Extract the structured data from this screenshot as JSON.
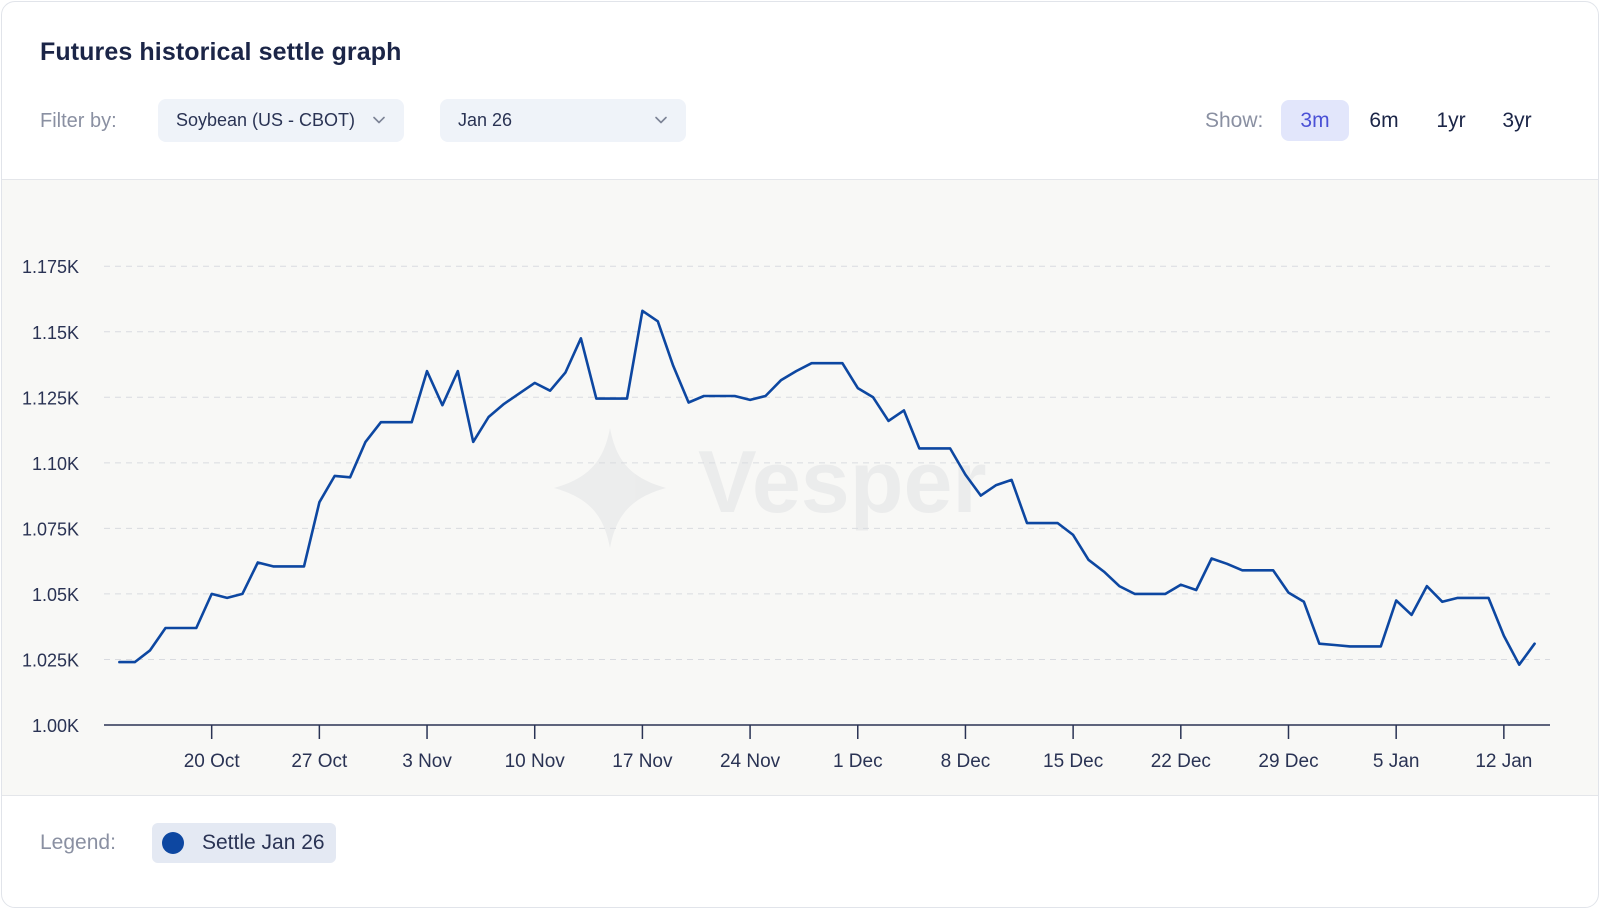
{
  "header": {
    "title": "Futures historical settle graph"
  },
  "filters": {
    "label": "Filter by:",
    "commodity": "Soybean (US - CBOT)",
    "contract": "Jan 26"
  },
  "range": {
    "label": "Show:",
    "options": [
      "3m",
      "6m",
      "1yr",
      "3yr"
    ],
    "selected": "3m"
  },
  "legend": {
    "label": "Legend:",
    "items": [
      {
        "name": "Settle Jan 26",
        "color": "#0d47a1"
      }
    ]
  },
  "watermark": {
    "text": "Vesper"
  },
  "chart_data": {
    "type": "line",
    "x_axis": {
      "type": "date",
      "range": [
        "2025-10-13",
        "2026-01-15"
      ],
      "tick_dates": [
        "2025-10-20",
        "2025-10-27",
        "2025-11-03",
        "2025-11-10",
        "2025-11-17",
        "2025-11-24",
        "2025-12-01",
        "2025-12-08",
        "2025-12-15",
        "2025-12-22",
        "2025-12-29",
        "2026-01-05",
        "2026-01-12"
      ],
      "tick_labels": [
        "20 Oct",
        "27 Oct",
        "3 Nov",
        "10 Nov",
        "17 Nov",
        "24 Nov",
        "1 Dec",
        "8 Dec",
        "15 Dec",
        "22 Dec",
        "29 Dec",
        "5 Jan",
        "12 Jan"
      ]
    },
    "y_axis": {
      "range": [
        1000,
        1185
      ],
      "ticks": [
        1000,
        1025,
        1050,
        1075,
        1100,
        1125,
        1150,
        1175
      ],
      "tick_labels": [
        "1.00K",
        "1.025K",
        "1.05K",
        "1.075K",
        "1.10K",
        "1.125K",
        "1.15K",
        "1.175K"
      ],
      "grid": true
    },
    "series": [
      {
        "name": "Settle Jan 26",
        "color": "#0d47a1",
        "points": [
          [
            "2025-10-14",
            1024
          ],
          [
            "2025-10-15",
            1024
          ],
          [
            "2025-10-16",
            1028.5
          ],
          [
            "2025-10-17",
            1037
          ],
          [
            "2025-10-18",
            1037
          ],
          [
            "2025-10-19",
            1037
          ],
          [
            "2025-10-20",
            1050
          ],
          [
            "2025-10-21",
            1048.5
          ],
          [
            "2025-10-22",
            1050
          ],
          [
            "2025-10-23",
            1062
          ],
          [
            "2025-10-24",
            1060.5
          ],
          [
            "2025-10-25",
            1060.5
          ],
          [
            "2025-10-26",
            1060.5
          ],
          [
            "2025-10-27",
            1085
          ],
          [
            "2025-10-28",
            1095
          ],
          [
            "2025-10-29",
            1094.5
          ],
          [
            "2025-10-30",
            1108
          ],
          [
            "2025-10-31",
            1115.5
          ],
          [
            "2025-11-01",
            1115.5
          ],
          [
            "2025-11-02",
            1115.5
          ],
          [
            "2025-11-03",
            1135
          ],
          [
            "2025-11-04",
            1122
          ],
          [
            "2025-11-05",
            1135
          ],
          [
            "2025-11-06",
            1108
          ],
          [
            "2025-11-07",
            1117.5
          ],
          [
            "2025-11-08",
            1122.5
          ],
          [
            "2025-11-09",
            1126.5
          ],
          [
            "2025-11-10",
            1130.5
          ],
          [
            "2025-11-11",
            1127.5
          ],
          [
            "2025-11-12",
            1134.5
          ],
          [
            "2025-11-13",
            1147.5
          ],
          [
            "2025-11-14",
            1124.5
          ],
          [
            "2025-11-15",
            1124.5
          ],
          [
            "2025-11-16",
            1124.5
          ],
          [
            "2025-11-17",
            1158
          ],
          [
            "2025-11-18",
            1154
          ],
          [
            "2025-11-19",
            1137
          ],
          [
            "2025-11-20",
            1123
          ],
          [
            "2025-11-21",
            1125.5
          ],
          [
            "2025-11-22",
            1125.5
          ],
          [
            "2025-11-23",
            1125.5
          ],
          [
            "2025-11-24",
            1124
          ],
          [
            "2025-11-25",
            1125.5
          ],
          [
            "2025-11-26",
            1131.5
          ],
          [
            "2025-11-27",
            1135
          ],
          [
            "2025-11-28",
            1138
          ],
          [
            "2025-11-29",
            1138
          ],
          [
            "2025-11-30",
            1138
          ],
          [
            "2025-12-01",
            1128.5
          ],
          [
            "2025-12-02",
            1125
          ],
          [
            "2025-12-03",
            1116
          ],
          [
            "2025-12-04",
            1120
          ],
          [
            "2025-12-05",
            1105.5
          ],
          [
            "2025-12-06",
            1105.5
          ],
          [
            "2025-12-07",
            1105.5
          ],
          [
            "2025-12-08",
            1095.5
          ],
          [
            "2025-12-09",
            1087.5
          ],
          [
            "2025-12-10",
            1091.5
          ],
          [
            "2025-12-11",
            1093.5
          ],
          [
            "2025-12-12",
            1077
          ],
          [
            "2025-12-13",
            1077
          ],
          [
            "2025-12-14",
            1077
          ],
          [
            "2025-12-15",
            1072.5
          ],
          [
            "2025-12-16",
            1063
          ],
          [
            "2025-12-17",
            1058.5
          ],
          [
            "2025-12-18",
            1053
          ],
          [
            "2025-12-19",
            1050
          ],
          [
            "2025-12-20",
            1050
          ],
          [
            "2025-12-21",
            1050
          ],
          [
            "2025-12-22",
            1053.5
          ],
          [
            "2025-12-23",
            1051.5
          ],
          [
            "2025-12-24",
            1063.5
          ],
          [
            "2025-12-25",
            1061.5
          ],
          [
            "2025-12-26",
            1059
          ],
          [
            "2025-12-27",
            1059
          ],
          [
            "2025-12-28",
            1059
          ],
          [
            "2025-12-29",
            1050.5
          ],
          [
            "2025-12-30",
            1047
          ],
          [
            "2025-12-31",
            1031
          ],
          [
            "2026-01-01",
            1030.5
          ],
          [
            "2026-01-02",
            1030
          ],
          [
            "2026-01-03",
            1030
          ],
          [
            "2026-01-04",
            1030
          ],
          [
            "2026-01-05",
            1047.5
          ],
          [
            "2026-01-06",
            1042
          ],
          [
            "2026-01-07",
            1053
          ],
          [
            "2026-01-08",
            1047
          ],
          [
            "2026-01-09",
            1048.5
          ],
          [
            "2026-01-10",
            1048.5
          ],
          [
            "2026-01-11",
            1048.5
          ],
          [
            "2026-01-12",
            1034
          ],
          [
            "2026-01-13",
            1023
          ],
          [
            "2026-01-14",
            1031
          ]
        ]
      }
    ]
  }
}
